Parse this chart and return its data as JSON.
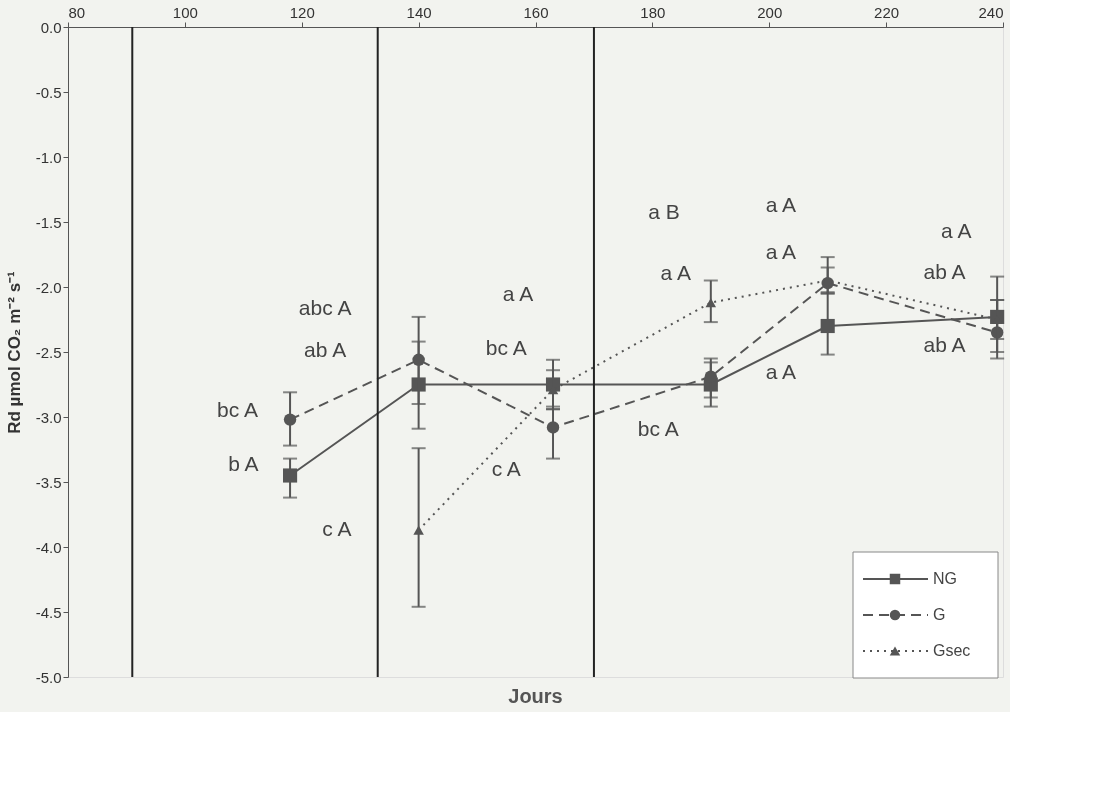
{
  "chart_data": {
    "type": "line",
    "xlabel": "Jours",
    "ylabel": "Rd µmol CO₂ m⁻² s⁻¹",
    "x": [
      118,
      140,
      163,
      190,
      210,
      239
    ],
    "series": [
      {
        "name": "NG",
        "color": "#555555",
        "marker": "square",
        "line_style": "solid",
        "values": [
          -3.45,
          -2.75,
          -2.75,
          -2.75,
          -2.3,
          -2.23
        ],
        "errors": [
          [
            -3.62,
            -3.32
          ],
          [
            -2.9,
            -2.42
          ],
          [
            -2.94,
            -2.56
          ],
          [
            -2.92,
            -2.58
          ],
          [
            -2.52,
            -2.04
          ],
          [
            -2.55,
            -1.92
          ]
        ]
      },
      {
        "name": "G",
        "color": "#555555",
        "marker": "circle",
        "line_style": "dashed",
        "values": [
          -3.02,
          -2.56,
          -3.08,
          -2.69,
          -1.97,
          -2.35
        ],
        "errors": [
          [
            -3.22,
            -2.81
          ],
          [
            -3.09,
            -2.23
          ],
          [
            -3.32,
            -2.92
          ],
          [
            -2.85,
            -2.55
          ],
          [
            -2.05,
            -1.77
          ],
          [
            -2.5,
            -2.1
          ]
        ]
      },
      {
        "name": "Gsec",
        "color": "#555555",
        "marker": "triangle",
        "line_style": "dotted",
        "values": [
          null,
          -3.87,
          -2.79,
          -2.12,
          -1.95,
          -2.25
        ],
        "errors": [
          null,
          [
            -4.46,
            -3.24
          ],
          [
            -2.94,
            -2.64
          ],
          [
            -2.27,
            -1.95
          ],
          [
            -2.05,
            -1.85
          ],
          [
            -2.4,
            -2.1
          ]
        ]
      }
    ],
    "xlim": [
      80,
      240
    ],
    "xticks": [
      80,
      100,
      120,
      140,
      160,
      180,
      200,
      220,
      240
    ],
    "ylim": [
      -5,
      0
    ],
    "yticks": [
      {
        "value": 0,
        "label": "0.0"
      },
      -0.5,
      {
        "value": -1,
        "label": "-1.0"
      },
      -1.5,
      {
        "value": -2,
        "label": "-2.0"
      },
      -2.5,
      {
        "value": -3,
        "label": "-3.0"
      },
      -3.5,
      {
        "value": -4,
        "label": "-4.0"
      },
      -4.5,
      {
        "value": -5,
        "label": "-5.0"
      }
    ],
    "ref_lines": [
      {
        "axis": "x",
        "value": 91,
        "color": "#222222"
      },
      {
        "axis": "x",
        "value": 133,
        "color": "#222222"
      },
      {
        "axis": "x",
        "value": 170,
        "color": "#222222"
      }
    ],
    "annotations": [
      "bc A",
      "b A",
      "c A",
      "abc A",
      "ab A",
      "a A",
      "bc A",
      "c A",
      "a B",
      "a A",
      "bc A",
      "a A",
      "a A",
      "a A",
      "a A",
      "ab A",
      "ab A"
    ],
    "legend": "bottom right",
    "grid": false
  }
}
